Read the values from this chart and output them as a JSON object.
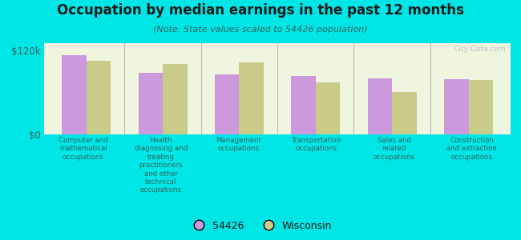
{
  "title": "Occupation by median earnings in the past 12 months",
  "subtitle": "(Note: State values scaled to 54426 population)",
  "categories": [
    "Computer and\nmathematical\noccupations",
    "Health\ndiagnosing and\ntreating\npractitioners\nand other\ntechnical\noccupations",
    "Management\noccupations",
    "Transportation\noccupations",
    "Sales and\nrelated\noccupations",
    "Construction\nand extraction\noccupations"
  ],
  "values_54426": [
    113000,
    88000,
    85000,
    83000,
    80000,
    79000
  ],
  "values_wisconsin": [
    105000,
    100000,
    103000,
    74000,
    60000,
    77000
  ],
  "color_54426": "#cc99dd",
  "color_wisconsin": "#c8cc88",
  "background_outer": "#00e5e5",
  "background_inner": "#f0f5e0",
  "ylabel_text": "$0",
  "ytick_top": "$120k",
  "ylim": [
    0,
    130000
  ],
  "legend_label_54426": "54426",
  "legend_label_wisconsin": "Wisconsin",
  "watermark": "City-Data.com",
  "title_color": "#1a1a1a",
  "subtitle_color": "#336666",
  "label_color": "#336666"
}
